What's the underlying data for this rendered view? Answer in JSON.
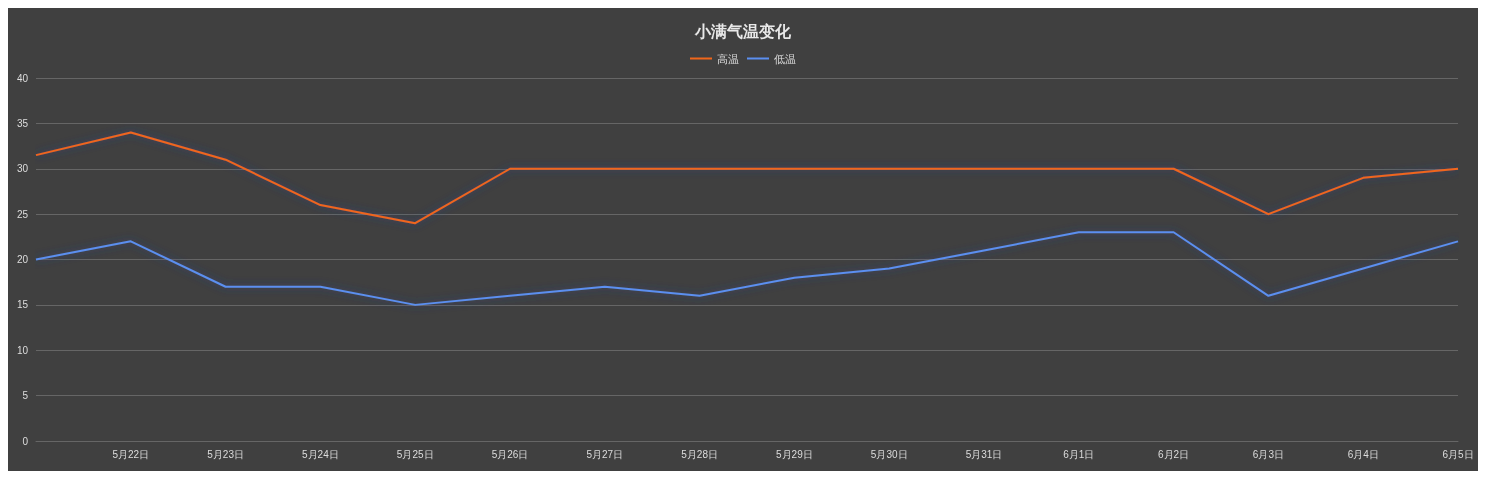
{
  "chart_data": {
    "type": "line",
    "title": "小满气温变化",
    "categories": [
      null,
      "5月22日",
      "5月23日",
      "5月24日",
      "5月25日",
      "5月26日",
      "5月27日",
      "5月28日",
      "5月29日",
      "5月30日",
      "5月31日",
      "6月1日",
      "6月2日",
      "6月3日",
      "6月4日",
      "6月5日"
    ],
    "series": [
      {
        "name": "高温",
        "color": "#f0661a",
        "values": [
          31.5,
          34,
          31,
          26,
          24,
          30,
          30,
          30,
          30,
          30,
          30,
          30,
          30,
          25,
          29,
          30
        ]
      },
      {
        "name": "低温",
        "color": "#5b8ff0",
        "values": [
          20,
          22,
          17,
          17,
          15,
          16,
          17,
          16,
          18,
          19,
          21,
          23,
          23,
          16,
          19,
          22
        ]
      }
    ],
    "ylim": [
      0,
      40
    ],
    "yticks": [
      0,
      5,
      10,
      15,
      20,
      25,
      30,
      35,
      40
    ],
    "grid": "y",
    "legend": "top",
    "marker": "none",
    "line_style": "solid"
  }
}
